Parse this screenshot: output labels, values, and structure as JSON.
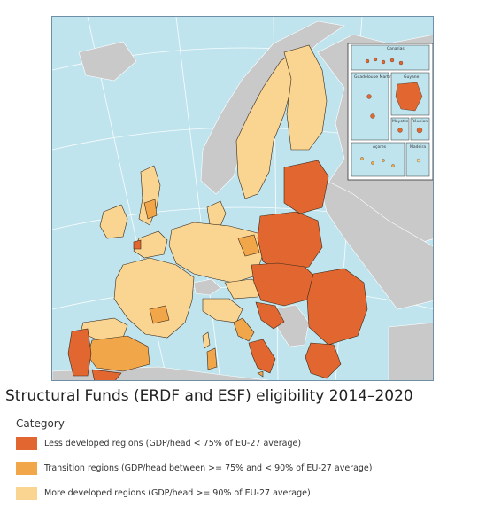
{
  "title": "Structural Funds (ERDF and ESF) eligibility 2014–2020",
  "legend": {
    "heading": "Category",
    "items": [
      {
        "label": "Less developed regions (GDP/head < 75% of EU-27 average)",
        "color": "#e2662f"
      },
      {
        "label": "Transition regions (GDP/head between >= 75% and < 90% of EU-27 average)",
        "color": "#f2a64a"
      },
      {
        "label": "More developed regions (GDP/head >= 90% of EU-27 average)",
        "color": "#fad592"
      }
    ]
  },
  "insets": {
    "canarias": "Canarias",
    "guadeloupe_martinique": "Guadeloupe Martinique",
    "guyane": "Guyane",
    "mayotte": "Mayotte",
    "reunion": "Réunion",
    "acores": "Açores",
    "madeira": "Madeira"
  },
  "colors": {
    "sea": "#bfe4ee",
    "non_eu": "#c9c9ca",
    "border": "#3a2a1a",
    "graticule": "#ffffff"
  }
}
